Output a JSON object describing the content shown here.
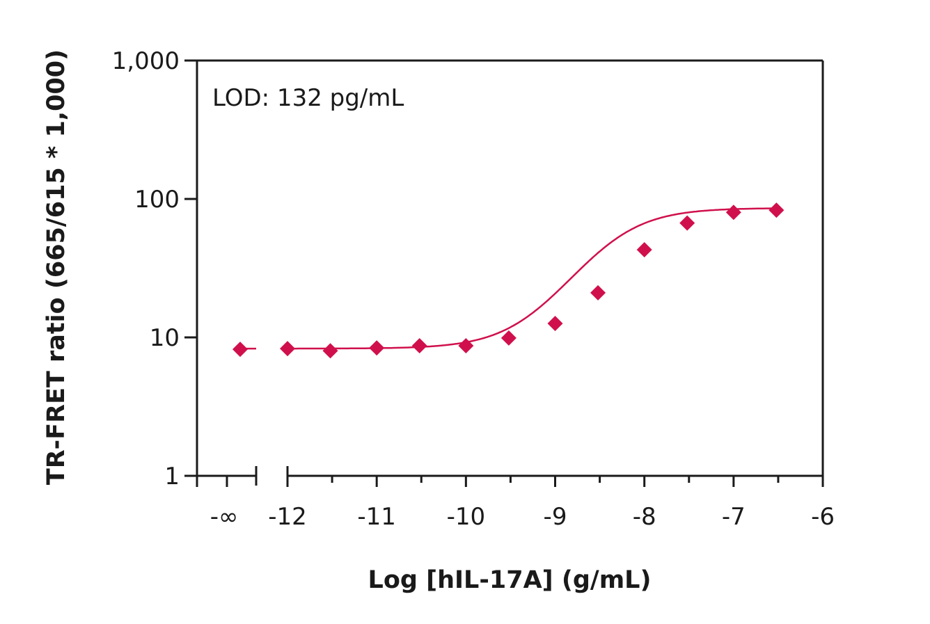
{
  "chart_data": {
    "type": "scatter",
    "title": "",
    "xlabel": "Log [hIL-17A] (g/mL)",
    "ylabel": "TR-FRET ratio (665/615 * 1,000)",
    "annotation": "LOD: 132 pg/mL",
    "y_scale": "log",
    "ylim": [
      1,
      1000
    ],
    "y_ticks": [
      {
        "value": 1,
        "label": "1"
      },
      {
        "value": 10,
        "label": "10"
      },
      {
        "value": 100,
        "label": "100"
      },
      {
        "value": 1000,
        "label": "1,000"
      }
    ],
    "xlim": [
      -12,
      -6
    ],
    "x_ticks": [
      {
        "value": -12,
        "label": "-12"
      },
      {
        "value": -11,
        "label": "-11"
      },
      {
        "value": -10,
        "label": "-10"
      },
      {
        "value": -9,
        "label": "-9"
      },
      {
        "value": -8,
        "label": "-8"
      },
      {
        "value": -7,
        "label": "-7"
      },
      {
        "value": -6,
        "label": "-6"
      }
    ],
    "x_break_label": "-∞",
    "grid": false,
    "color": "#d0104c",
    "series": [
      {
        "marker": "diamond",
        "points": [
          {
            "x": "-∞",
            "y": 8.2
          },
          {
            "x": -12.0,
            "y": 8.3
          },
          {
            "x": -11.52,
            "y": 8.0
          },
          {
            "x": -11.0,
            "y": 8.4
          },
          {
            "x": -10.52,
            "y": 8.7
          },
          {
            "x": -10.0,
            "y": 8.7
          },
          {
            "x": -9.52,
            "y": 9.9
          },
          {
            "x": -9.0,
            "y": 12.6
          },
          {
            "x": -8.52,
            "y": 21.0
          },
          {
            "x": -8.0,
            "y": 43.0
          },
          {
            "x": -7.52,
            "y": 67.0
          },
          {
            "x": -7.0,
            "y": 80.0
          },
          {
            "x": -6.52,
            "y": 83.0
          }
        ]
      }
    ],
    "fit": {
      "type": "4PL",
      "bottom": 8.3,
      "top": 86,
      "log_ec50": -8.4,
      "hill": 1.2
    }
  }
}
